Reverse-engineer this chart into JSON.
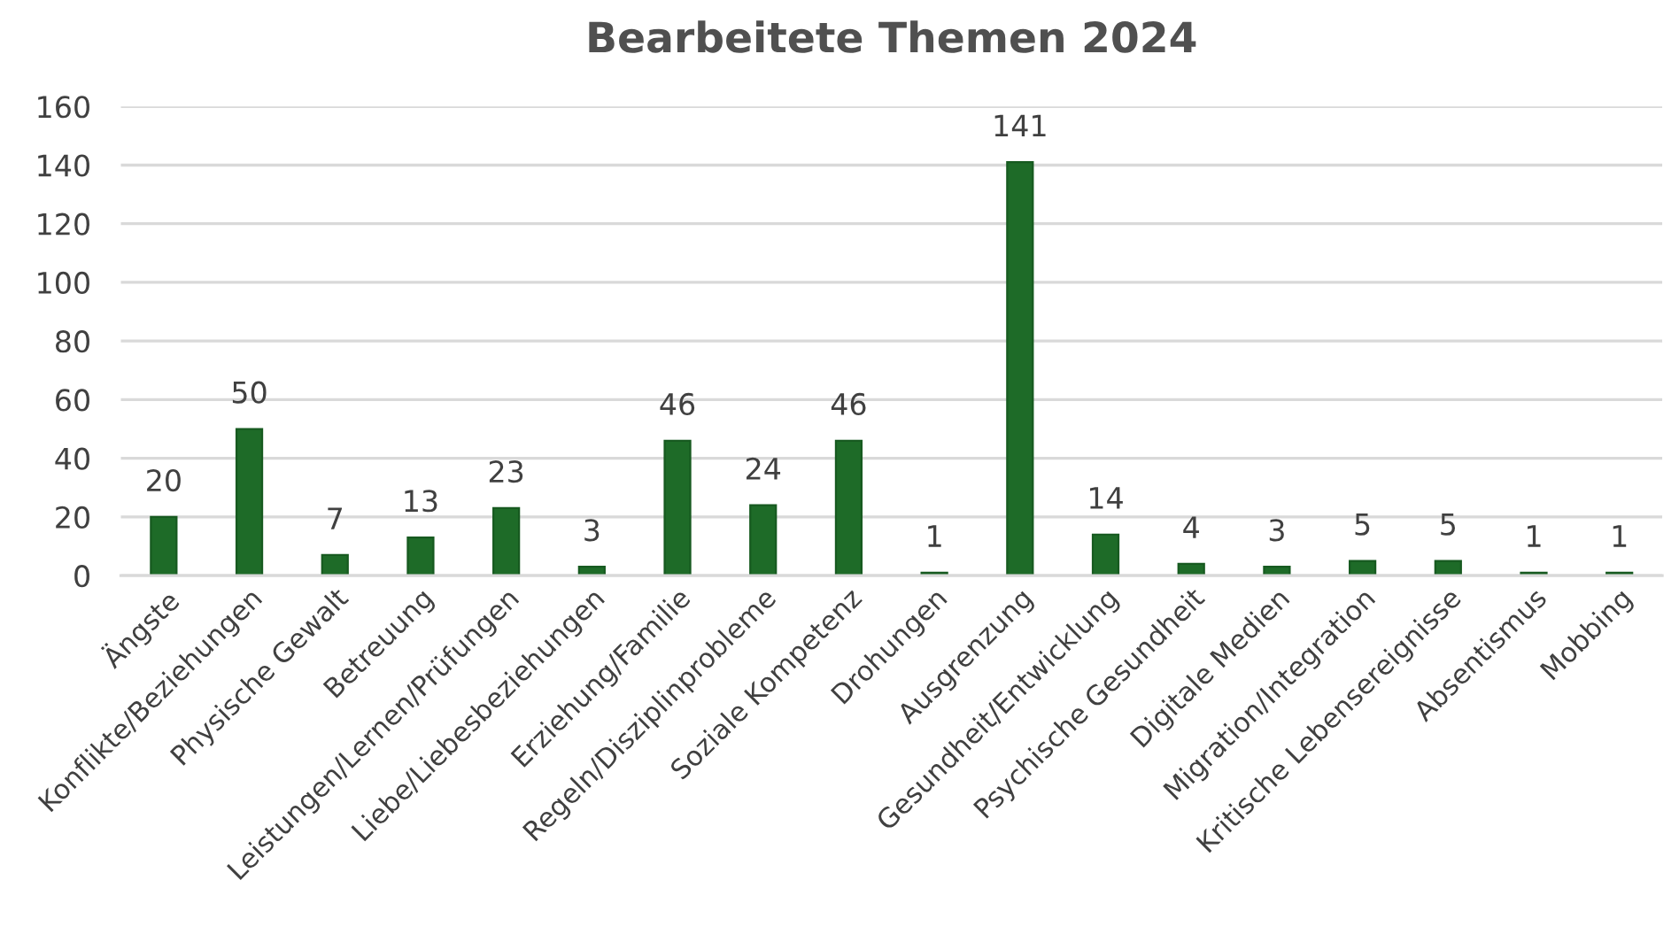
{
  "chart_data": {
    "type": "bar",
    "title": "Bearbeitete Themen 2024",
    "categories": [
      "Ängste",
      "Konflikte/Beziehungen",
      "Physische Gewalt",
      "Betreuung",
      "Leistungen/Lernen/Prüfungen",
      "Liebe/Liebesbeziehungen",
      "Erziehung/Familie",
      "Regeln/Disziplinprobleme",
      "Soziale Kompetenz",
      "Drohungen",
      "Ausgrenzung",
      "Gesundheit/Entwicklung",
      "Psychische Gesundheit",
      "Digitale Medien",
      "Migration/Integration",
      "Kritische Lebensereignisse",
      "Absentismus",
      "Mobbing"
    ],
    "values": [
      20,
      50,
      7,
      13,
      23,
      3,
      46,
      24,
      46,
      1,
      141,
      14,
      4,
      3,
      5,
      5,
      1,
      1
    ],
    "color": "#1e6b28",
    "ylim": [
      0,
      160
    ],
    "yticks": [
      0,
      20,
      40,
      60,
      80,
      100,
      120,
      140,
      160
    ],
    "grid": "y",
    "legend": false,
    "data_labels": true
  }
}
